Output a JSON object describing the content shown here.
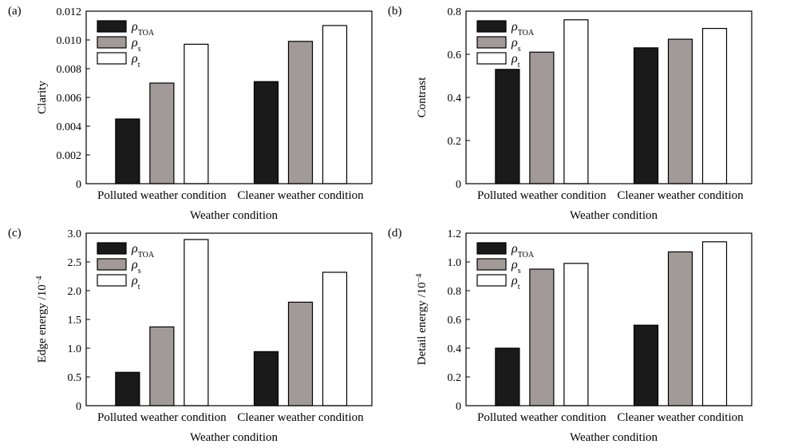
{
  "chart_data": [
    {
      "panel": "(a)",
      "type": "bar",
      "categories": [
        "Polluted weather condition",
        "Cleaner weather condition"
      ],
      "series": [
        {
          "name": "ρ_TOA",
          "symbol": "ρ",
          "subscript": "TOA",
          "color": "#1a1a1a",
          "values": [
            0.0045,
            0.0071
          ]
        },
        {
          "name": "ρ_s",
          "symbol": "ρ",
          "subscript": "s",
          "color": "#a29a98",
          "values": [
            0.007,
            0.0099
          ]
        },
        {
          "name": "ρ_t",
          "symbol": "ρ",
          "subscript": "t",
          "color": "#ffffff",
          "values": [
            0.0097,
            0.011
          ]
        }
      ],
      "xlabel": "Weather condition",
      "ylabel": "Clarity",
      "ylabel_sup": "",
      "ylim": [
        0,
        0.012
      ],
      "yticks": [
        0,
        0.002,
        0.004,
        0.006,
        0.008,
        0.01,
        0.012
      ],
      "ytick_labels": [
        "0",
        "0.002",
        "0.004",
        "0.006",
        "0.008",
        "0.010",
        "0.012"
      ],
      "legend": "top-left"
    },
    {
      "panel": "(b)",
      "type": "bar",
      "categories": [
        "Polluted weather condition",
        "Cleaner weather condition"
      ],
      "series": [
        {
          "name": "ρ_TOA",
          "symbol": "ρ",
          "subscript": "TOA",
          "color": "#1a1a1a",
          "values": [
            0.53,
            0.63
          ]
        },
        {
          "name": "ρ_s",
          "symbol": "ρ",
          "subscript": "s",
          "color": "#a29a98",
          "values": [
            0.61,
            0.67
          ]
        },
        {
          "name": "ρ_t",
          "symbol": "ρ",
          "subscript": "t",
          "color": "#ffffff",
          "values": [
            0.76,
            0.72
          ]
        }
      ],
      "xlabel": "Weather condition",
      "ylabel": "Contrast",
      "ylabel_sup": "",
      "ylim": [
        0,
        0.8
      ],
      "yticks": [
        0,
        0.2,
        0.4,
        0.6,
        0.8
      ],
      "ytick_labels": [
        "0",
        "0.2",
        "0.4",
        "0.6",
        "0.8"
      ],
      "legend": "top-left"
    },
    {
      "panel": "(c)",
      "type": "bar",
      "categories": [
        "Polluted weather condition",
        "Cleaner weather condition"
      ],
      "series": [
        {
          "name": "ρ_TOA",
          "symbol": "ρ",
          "subscript": "TOA",
          "color": "#1a1a1a",
          "values": [
            0.58,
            0.94
          ]
        },
        {
          "name": "ρ_s",
          "symbol": "ρ",
          "subscript": "s",
          "color": "#a29a98",
          "values": [
            1.37,
            1.8
          ]
        },
        {
          "name": "ρ_t",
          "symbol": "ρ",
          "subscript": "t",
          "color": "#ffffff",
          "values": [
            2.89,
            2.32
          ]
        }
      ],
      "xlabel": "Weather condition",
      "ylabel": "Edge energy /10",
      "ylabel_sup": "−4",
      "ylim": [
        0,
        3.0
      ],
      "yticks": [
        0,
        0.5,
        1.0,
        1.5,
        2.0,
        2.5,
        3.0
      ],
      "ytick_labels": [
        "0",
        "0.5",
        "1.0",
        "1.5",
        "2.0",
        "2.5",
        "3.0"
      ],
      "legend": "top-left"
    },
    {
      "panel": "(d)",
      "type": "bar",
      "categories": [
        "Polluted weather condition",
        "Cleaner weather condition"
      ],
      "series": [
        {
          "name": "ρ_TOA",
          "symbol": "ρ",
          "subscript": "TOA",
          "color": "#1a1a1a",
          "values": [
            0.4,
            0.56
          ]
        },
        {
          "name": "ρ_s",
          "symbol": "ρ",
          "subscript": "s",
          "color": "#a29a98",
          "values": [
            0.95,
            1.07
          ]
        },
        {
          "name": "ρ_t",
          "symbol": "ρ",
          "subscript": "t",
          "color": "#ffffff",
          "values": [
            0.99,
            1.14
          ]
        }
      ],
      "xlabel": "Weather condition",
      "ylabel": "Detail energy /10",
      "ylabel_sup": "−4",
      "ylim": [
        0,
        1.2
      ],
      "yticks": [
        0,
        0.2,
        0.4,
        0.6,
        0.8,
        1.0,
        1.2
      ],
      "ytick_labels": [
        "0",
        "0.2",
        "0.4",
        "0.6",
        "0.8",
        "1.0",
        "1.2"
      ],
      "legend": "top-left"
    }
  ]
}
